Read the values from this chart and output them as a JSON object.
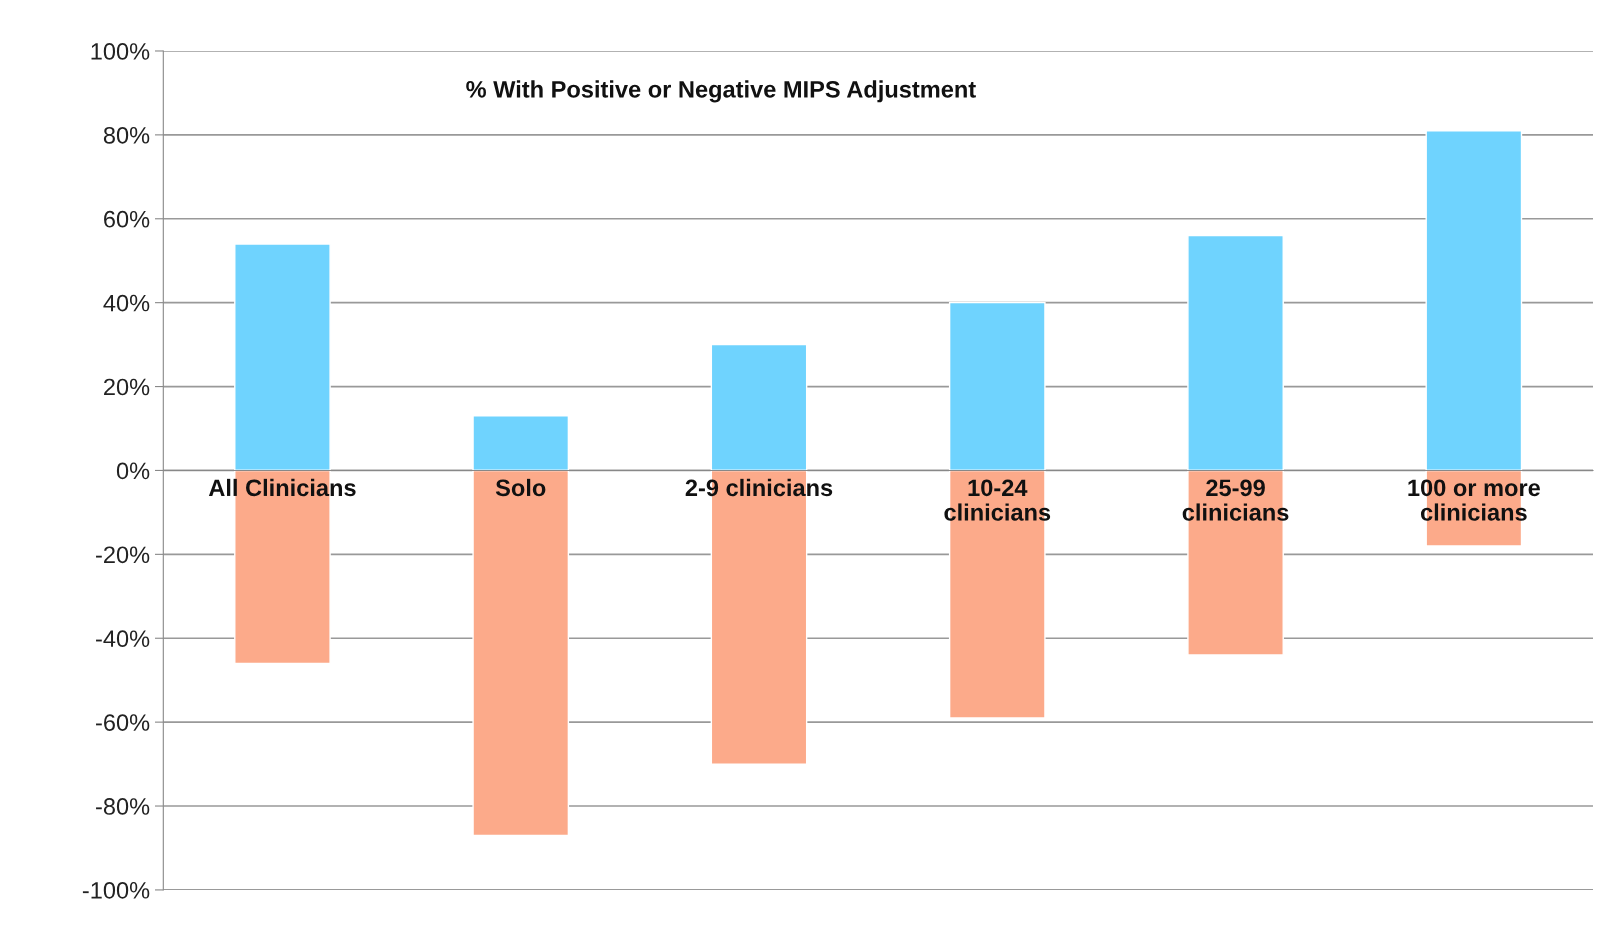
{
  "chart_data": {
    "type": "bar",
    "title": "% With Positive or Negative MIPS Adjustment",
    "categories": [
      "All Clinicians",
      "Solo",
      "2-9 clinicians",
      "10-24\nclinicians",
      "25-99\nclinicians",
      "100 or more\nclinicians"
    ],
    "series": [
      {
        "color": "#6fd3fe",
        "values": [
          54,
          13,
          30,
          40,
          56,
          81
        ]
      },
      {
        "color": "#fcaa8a",
        "values": [
          -46,
          -87,
          -70,
          -59,
          -44,
          -18
        ]
      }
    ],
    "ylim": [
      -100,
      100
    ],
    "yticks": [
      {
        "value": -100,
        "label": "-100%"
      },
      {
        "value": -80,
        "label": "-80%"
      },
      {
        "value": -60,
        "label": "-60%"
      },
      {
        "value": -40,
        "label": "-40%"
      },
      {
        "value": -20,
        "label": "-20%"
      },
      {
        "value": 0,
        "label": "0%"
      },
      {
        "value": 20,
        "label": "20%"
      },
      {
        "value": 40,
        "label": "40%"
      },
      {
        "value": 60,
        "label": "60%"
      },
      {
        "value": 80,
        "label": "80%"
      },
      {
        "value": 100,
        "label": "100%"
      }
    ],
    "grid": "y",
    "legend": false,
    "stacked": true
  }
}
